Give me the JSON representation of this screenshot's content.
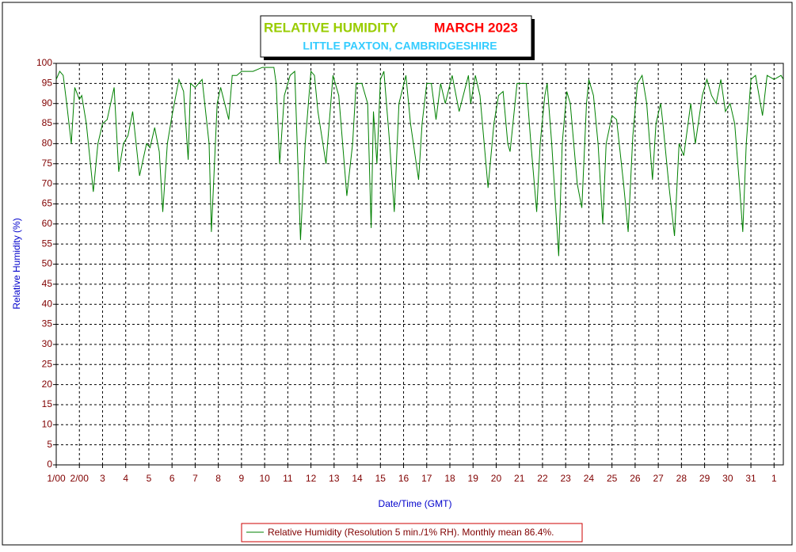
{
  "chart_data": {
    "type": "line",
    "title": "RELATIVE HUMIDITY",
    "title_date": "MARCH 2023",
    "subtitle": "LITTLE PAXTON, CAMBRIDGESHIRE",
    "x_label": "Date/Time (GMT)",
    "y_label": "Relative Humidity (%)",
    "x": [
      1.0,
      1.15,
      1.3,
      1.45,
      1.65,
      1.8,
      2.0,
      2.1,
      2.3,
      2.6,
      2.8,
      3.0,
      3.2,
      3.5,
      3.7,
      3.9,
      4.1,
      4.3,
      4.6,
      4.9,
      5.05,
      5.25,
      5.45,
      5.6,
      5.8,
      6.0,
      6.3,
      6.5,
      6.7,
      6.8,
      7.0,
      7.3,
      7.6,
      7.7,
      7.95,
      8.1,
      8.45,
      8.6,
      8.8,
      9.0,
      9.5,
      9.9,
      10.2,
      10.4,
      10.5,
      10.65,
      10.85,
      11.1,
      11.3,
      11.55,
      11.75,
      12.0,
      12.15,
      12.3,
      12.65,
      12.95,
      13.2,
      13.55,
      13.8,
      13.95,
      14.2,
      14.45,
      14.6,
      14.7,
      14.85,
      15.0,
      15.15,
      15.4,
      15.6,
      15.8,
      16.1,
      16.3,
      16.65,
      16.8,
      17.0,
      17.2,
      17.4,
      17.6,
      17.8,
      18.1,
      18.4,
      18.8,
      18.9,
      19.1,
      19.3,
      19.65,
      19.9,
      20.1,
      20.3,
      20.5,
      20.6,
      20.9,
      21.1,
      21.3,
      21.5,
      21.75,
      21.9,
      22.1,
      22.2,
      22.4,
      22.7,
      22.85,
      23.05,
      23.2,
      23.5,
      23.7,
      23.9,
      24.0,
      24.2,
      24.4,
      24.6,
      24.75,
      25.0,
      25.2,
      25.5,
      25.7,
      25.9,
      26.1,
      26.3,
      26.5,
      26.75,
      26.9,
      27.1,
      27.2,
      27.45,
      27.7,
      27.9,
      28.1,
      28.4,
      28.6,
      28.9,
      29.1,
      29.3,
      29.5,
      29.7,
      29.9,
      30.1,
      30.3,
      30.5,
      30.65,
      30.8,
      31.0,
      31.2,
      31.5,
      31.7,
      32.0,
      32.3,
      32.4
    ],
    "series": [
      {
        "name": "Relative Humidity (Resolution 5 min./1% RH). Monthly mean 86.4%.",
        "color": "#008000",
        "values": [
          96,
          98,
          97,
          90,
          80,
          94,
          91,
          92,
          85,
          68,
          80,
          85,
          86,
          94,
          73,
          80,
          82,
          88,
          72,
          80,
          79,
          84,
          78,
          63,
          80,
          87,
          96,
          93,
          76,
          95,
          94,
          96,
          80,
          58,
          90,
          94,
          86,
          97,
          97,
          98,
          98,
          99,
          99,
          99,
          95,
          75,
          92,
          97,
          98,
          56,
          80,
          98,
          97,
          88,
          75,
          97,
          92,
          67,
          80,
          95,
          95,
          90,
          59,
          88,
          75,
          96,
          98,
          80,
          63,
          90,
          97,
          85,
          71,
          85,
          95,
          95,
          86,
          95,
          90,
          97,
          88,
          97,
          90,
          97,
          92,
          69,
          85,
          92,
          93,
          80,
          78,
          95,
          95,
          95,
          80,
          63,
          80,
          92,
          95,
          80,
          52,
          80,
          93,
          90,
          70,
          64,
          90,
          96,
          92,
          80,
          60,
          80,
          87,
          86,
          70,
          58,
          82,
          95,
          97,
          90,
          71,
          85,
          90,
          85,
          70,
          57,
          80,
          77,
          90,
          80,
          92,
          96,
          92,
          90,
          96,
          88,
          90,
          85,
          70,
          58,
          80,
          96,
          97,
          87,
          97,
          96,
          97,
          96
        ]
      }
    ],
    "xlim": [
      1,
      32.4
    ],
    "xticks": [
      {
        "value": 1,
        "label": "1/00"
      },
      {
        "value": 2,
        "label": "2/00"
      },
      3,
      4,
      5,
      6,
      7,
      8,
      9,
      10,
      11,
      12,
      13,
      14,
      15,
      16,
      17,
      18,
      19,
      20,
      21,
      22,
      23,
      24,
      25,
      26,
      27,
      28,
      29,
      30,
      31,
      {
        "value": 32,
        "label": "1"
      }
    ],
    "ylim": [
      0,
      100
    ],
    "yticks": [
      0,
      5,
      10,
      15,
      20,
      25,
      30,
      35,
      40,
      45,
      50,
      55,
      60,
      65,
      70,
      75,
      80,
      85,
      90,
      95,
      100
    ],
    "grid": true
  }
}
